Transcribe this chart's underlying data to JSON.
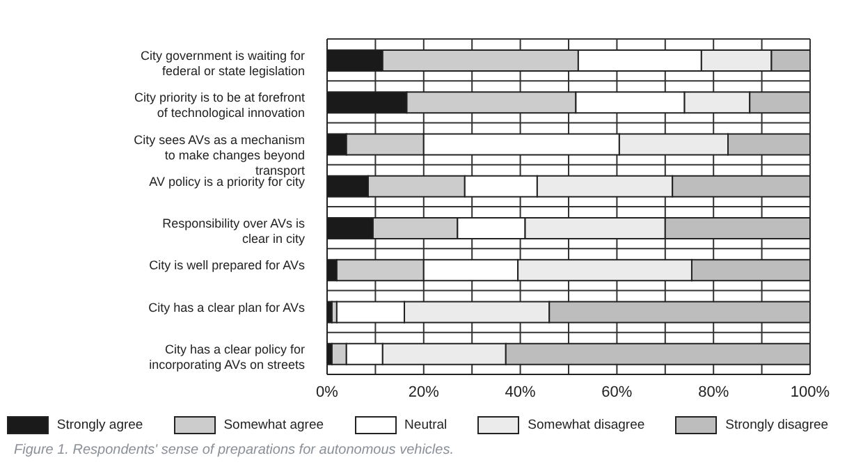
{
  "chart_data": {
    "type": "bar",
    "orientation": "horizontal",
    "stacked": true,
    "categories": [
      "City government is waiting for federal or state legislation",
      "City priority is to be at forefront of technological innovation",
      "City sees AVs as a mechanism to make changes beyond transport",
      "AV policy is a priority for city",
      "Responsibility over AVs is clear in city",
      "City is well prepared for AVs",
      "City has a clear plan for AVs",
      "City has a clear policy for incorporating AVs on streets"
    ],
    "series": [
      {
        "name": "Strongly agree",
        "color": "#1a1a1a",
        "values": [
          11.5,
          16.5,
          4,
          8.5,
          9.5,
          2,
          1,
          1
        ]
      },
      {
        "name": "Somewhat agree",
        "color": "#cccccc",
        "values": [
          40.5,
          35,
          16,
          20,
          17.5,
          18,
          1,
          3
        ]
      },
      {
        "name": "Neutral",
        "color": "#ffffff",
        "values": [
          25.5,
          22.5,
          40.5,
          15,
          14,
          19.5,
          14,
          7.5
        ]
      },
      {
        "name": "Somewhat disagree",
        "color": "#ebebeb",
        "values": [
          14.5,
          13.5,
          22.5,
          28,
          29,
          36,
          30,
          25.5
        ]
      },
      {
        "name": "Strongly disagree",
        "color": "#bdbdbd",
        "values": [
          8,
          12.5,
          17,
          28.5,
          30,
          24.5,
          54,
          63
        ]
      }
    ],
    "xlim": [
      0,
      100
    ],
    "xticks": [
      {
        "value": 0,
        "label": "0%"
      },
      {
        "value": 10,
        "label": null
      },
      {
        "value": 20,
        "label": "20%"
      },
      {
        "value": 30,
        "label": null
      },
      {
        "value": 40,
        "label": "40%"
      },
      {
        "value": 50,
        "label": null
      },
      {
        "value": 60,
        "label": "60%"
      },
      {
        "value": 70,
        "label": null
      },
      {
        "value": 80,
        "label": "80%"
      },
      {
        "value": 90,
        "label": null
      },
      {
        "value": 100,
        "label": "100%"
      }
    ],
    "grid": true,
    "legend": "bottom",
    "annotations": [
      "Figure 1.  Respondents' sense of preparations for autonomous vehicles."
    ]
  }
}
